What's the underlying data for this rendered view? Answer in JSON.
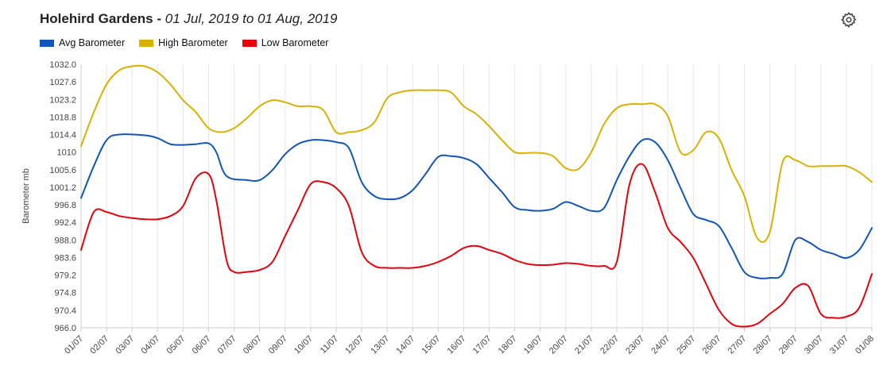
{
  "header": {
    "title": "Holehird Gardens",
    "separator": " - ",
    "date_range": "01 Jul, 2019 to 01 Aug, 2019"
  },
  "toolbar": {
    "settings_icon": "gear-icon"
  },
  "chart_data": {
    "type": "line",
    "ylabel": "Barometer mb",
    "xlabel": "",
    "ylim": [
      966.0,
      1032.0
    ],
    "y_ticks": [
      "966.0",
      "970.4",
      "974.8",
      "979.2",
      "983.6",
      "988.0",
      "992.4",
      "996.8",
      "1001.2",
      "1005.6",
      "1010",
      "1014.4",
      "1018.8",
      "1023.2",
      "1027.6",
      "1032.0"
    ],
    "x_ticks": [
      "01/07",
      "02/07",
      "03/07",
      "04/07",
      "05/07",
      "06/07",
      "07/07",
      "08/07",
      "09/07",
      "10/07",
      "11/07",
      "12/07",
      "13/07",
      "14/07",
      "15/07",
      "16/07",
      "17/07",
      "18/07",
      "19/07",
      "20/07",
      "21/07",
      "22/07",
      "23/07",
      "24/07",
      "25/07",
      "26/07",
      "27/07",
      "28/07",
      "29/07",
      "30/07",
      "31/07",
      "01/08"
    ],
    "x_range": [
      0,
      31
    ],
    "grid": "vertical",
    "legend_position": "top-left",
    "series": [
      {
        "name": "Avg Barometer",
        "color": "#1155bb",
        "points": [
          [
            0,
            998.5
          ],
          [
            0.5,
            1006.5
          ],
          [
            1,
            1013.0
          ],
          [
            1.5,
            1014.4
          ],
          [
            2.5,
            1014.2
          ],
          [
            3,
            1013.5
          ],
          [
            3.5,
            1012.0
          ],
          [
            4,
            1011.8
          ],
          [
            4.5,
            1012.0
          ],
          [
            5,
            1012.2
          ],
          [
            5.3,
            1010.0
          ],
          [
            5.7,
            1004.0
          ],
          [
            6.5,
            1003.0
          ],
          [
            7,
            1003.0
          ],
          [
            7.5,
            1005.5
          ],
          [
            8,
            1009.5
          ],
          [
            8.5,
            1012.0
          ],
          [
            9,
            1013.0
          ],
          [
            9.5,
            1013.0
          ],
          [
            10,
            1012.5
          ],
          [
            10.5,
            1011.0
          ],
          [
            11,
            1002.5
          ],
          [
            11.5,
            999.0
          ],
          [
            12,
            998.2
          ],
          [
            12.5,
            998.5
          ],
          [
            13,
            1000.5
          ],
          [
            13.5,
            1004.5
          ],
          [
            14,
            1008.8
          ],
          [
            14.5,
            1009.0
          ],
          [
            15,
            1008.5
          ],
          [
            15.5,
            1007.0
          ],
          [
            16,
            1003.5
          ],
          [
            16.5,
            1000.0
          ],
          [
            17,
            996.2
          ],
          [
            17.5,
            995.5
          ],
          [
            18,
            995.3
          ],
          [
            18.5,
            995.8
          ],
          [
            19,
            997.5
          ],
          [
            19.5,
            996.5
          ],
          [
            20,
            995.3
          ],
          [
            20.5,
            996.0
          ],
          [
            21,
            1003.0
          ],
          [
            21.5,
            1009.0
          ],
          [
            22,
            1013.0
          ],
          [
            22.5,
            1012.5
          ],
          [
            23,
            1008.0
          ],
          [
            23.5,
            1001.0
          ],
          [
            24,
            994.5
          ],
          [
            24.5,
            993.0
          ],
          [
            25,
            991.5
          ],
          [
            25.5,
            986.0
          ],
          [
            26,
            980.0
          ],
          [
            26.5,
            978.5
          ],
          [
            27,
            978.5
          ],
          [
            27.5,
            979.5
          ],
          [
            28,
            988.0
          ],
          [
            28.5,
            987.5
          ],
          [
            29,
            985.5
          ],
          [
            29.5,
            984.5
          ],
          [
            30,
            983.5
          ],
          [
            30.5,
            985.5
          ],
          [
            31,
            991.0
          ]
        ]
      },
      {
        "name": "High Barometer",
        "color": "#d9b100",
        "points": [
          [
            0,
            1011.5
          ],
          [
            0.5,
            1020.0
          ],
          [
            1,
            1027.0
          ],
          [
            1.5,
            1030.5
          ],
          [
            2,
            1031.5
          ],
          [
            2.5,
            1031.5
          ],
          [
            3,
            1030.0
          ],
          [
            3.5,
            1027.0
          ],
          [
            4,
            1023.0
          ],
          [
            4.5,
            1020.0
          ],
          [
            5,
            1016.0
          ],
          [
            5.5,
            1015.0
          ],
          [
            6,
            1016.0
          ],
          [
            6.5,
            1018.5
          ],
          [
            7,
            1021.5
          ],
          [
            7.5,
            1023.0
          ],
          [
            8,
            1022.5
          ],
          [
            8.5,
            1021.5
          ],
          [
            9,
            1021.5
          ],
          [
            9.5,
            1020.5
          ],
          [
            10,
            1015.0
          ],
          [
            10.5,
            1015.0
          ],
          [
            11,
            1015.5
          ],
          [
            11.5,
            1017.5
          ],
          [
            12,
            1023.5
          ],
          [
            12.5,
            1025.0
          ],
          [
            13,
            1025.5
          ],
          [
            13.5,
            1025.5
          ],
          [
            14,
            1025.5
          ],
          [
            14.5,
            1025.0
          ],
          [
            15,
            1021.5
          ],
          [
            15.5,
            1019.5
          ],
          [
            16,
            1016.5
          ],
          [
            16.5,
            1013.0
          ],
          [
            17,
            1010.0
          ],
          [
            17.5,
            1009.8
          ],
          [
            18,
            1009.8
          ],
          [
            18.5,
            1009.0
          ],
          [
            19,
            1006.0
          ],
          [
            19.5,
            1005.8
          ],
          [
            20,
            1010.0
          ],
          [
            20.5,
            1017.0
          ],
          [
            21,
            1021.0
          ],
          [
            21.5,
            1022.0
          ],
          [
            22,
            1022.0
          ],
          [
            22.5,
            1022.0
          ],
          [
            23,
            1019.0
          ],
          [
            23.5,
            1010.0
          ],
          [
            24,
            1010.5
          ],
          [
            24.5,
            1015.0
          ],
          [
            25,
            1013.5
          ],
          [
            25.5,
            1005.5
          ],
          [
            26,
            999.0
          ],
          [
            26.5,
            988.5
          ],
          [
            27,
            990.0
          ],
          [
            27.5,
            1007.5
          ],
          [
            28,
            1008.0
          ],
          [
            28.5,
            1006.5
          ],
          [
            29,
            1006.5
          ],
          [
            29.5,
            1006.5
          ],
          [
            30,
            1006.5
          ],
          [
            30.5,
            1005.0
          ],
          [
            31,
            1002.5
          ]
        ]
      },
      {
        "name": "Low Barometer",
        "color": "#e8000b",
        "points": [
          [
            0,
            985.5
          ],
          [
            0.5,
            995.0
          ],
          [
            1,
            995.0
          ],
          [
            1.5,
            994.0
          ],
          [
            2,
            993.5
          ],
          [
            2.5,
            993.2
          ],
          [
            3,
            993.2
          ],
          [
            3.5,
            994.0
          ],
          [
            4,
            996.5
          ],
          [
            4.5,
            1003.5
          ],
          [
            5,
            1004.5
          ],
          [
            5.3,
            998.0
          ],
          [
            5.7,
            983.0
          ],
          [
            6,
            980.0
          ],
          [
            6.5,
            980.0
          ],
          [
            7,
            980.5
          ],
          [
            7.5,
            982.5
          ],
          [
            8,
            989.0
          ],
          [
            8.5,
            995.5
          ],
          [
            9,
            1002.0
          ],
          [
            9.5,
            1002.5
          ],
          [
            10,
            1001.0
          ],
          [
            10.5,
            996.5
          ],
          [
            11,
            985.0
          ],
          [
            11.5,
            981.5
          ],
          [
            12,
            981.0
          ],
          [
            12.5,
            981.0
          ],
          [
            13,
            981.0
          ],
          [
            13.5,
            981.5
          ],
          [
            14,
            982.5
          ],
          [
            14.5,
            984.0
          ],
          [
            15,
            986.0
          ],
          [
            15.5,
            986.5
          ],
          [
            16,
            985.5
          ],
          [
            16.5,
            984.5
          ],
          [
            17,
            983.0
          ],
          [
            17.5,
            982.0
          ],
          [
            18,
            981.7
          ],
          [
            18.5,
            981.8
          ],
          [
            19,
            982.2
          ],
          [
            19.5,
            982.0
          ],
          [
            20,
            981.5
          ],
          [
            20.5,
            981.5
          ],
          [
            21,
            982.5
          ],
          [
            21.5,
            1002.0
          ],
          [
            22,
            1007.0
          ],
          [
            22.5,
            1000.0
          ],
          [
            23,
            991.0
          ],
          [
            23.5,
            987.5
          ],
          [
            24,
            983.5
          ],
          [
            24.5,
            977.0
          ],
          [
            25,
            970.5
          ],
          [
            25.5,
            967.0
          ],
          [
            26,
            966.3
          ],
          [
            26.5,
            967.0
          ],
          [
            27,
            969.5
          ],
          [
            27.5,
            972.0
          ],
          [
            28,
            976.0
          ],
          [
            28.5,
            976.5
          ],
          [
            29,
            969.5
          ],
          [
            29.5,
            968.5
          ],
          [
            30,
            968.8
          ],
          [
            30.5,
            971.0
          ],
          [
            31,
            979.5
          ]
        ]
      }
    ]
  }
}
